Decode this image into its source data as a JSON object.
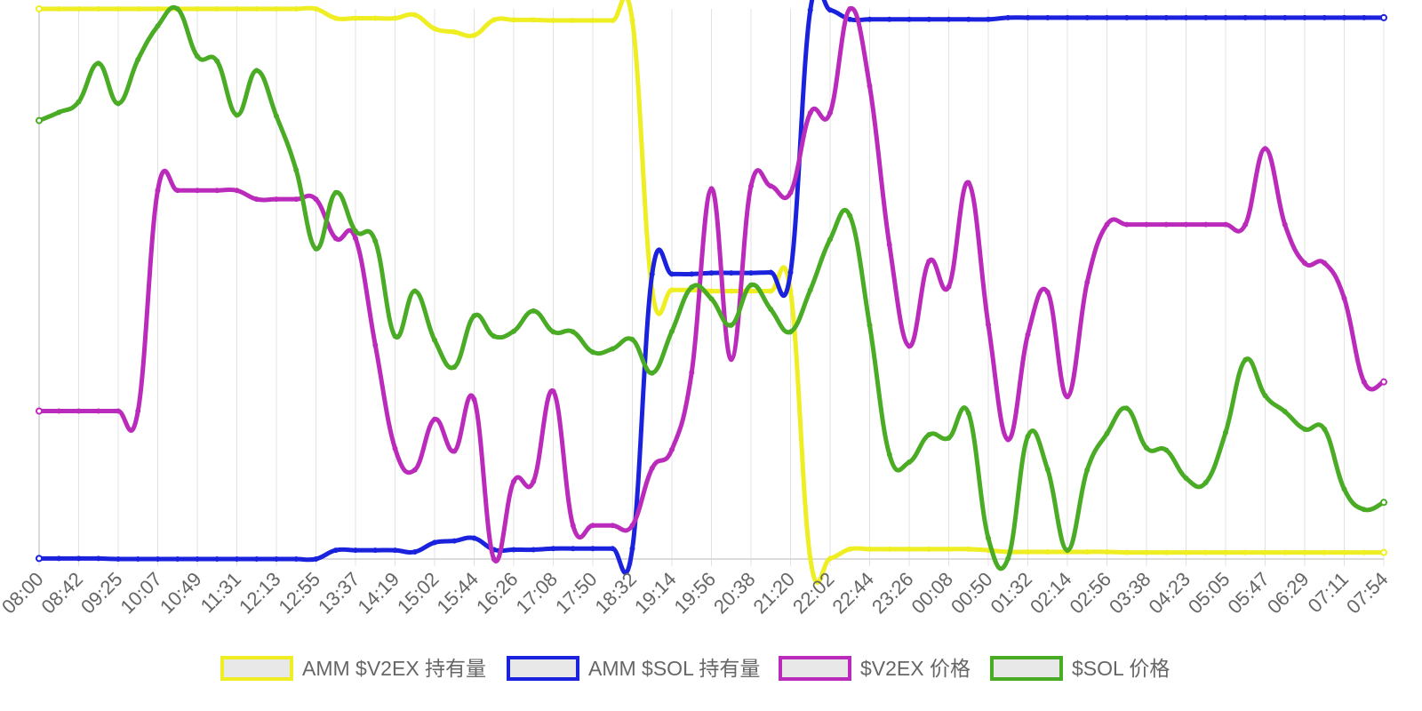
{
  "chart_data": {
    "type": "line",
    "x": [
      "08:00",
      "08:21",
      "08:42",
      "09:04",
      "09:25",
      "09:46",
      "10:07",
      "10:28",
      "10:49",
      "11:10",
      "11:31",
      "11:52",
      "12:13",
      "12:34",
      "12:55",
      "13:16",
      "13:37",
      "13:58",
      "14:19",
      "14:40",
      "15:02",
      "15:23",
      "15:44",
      "16:05",
      "16:26",
      "16:47",
      "17:08",
      "17:29",
      "17:50",
      "18:11",
      "18:32",
      "18:53",
      "19:14",
      "19:35",
      "19:56",
      "20:17",
      "20:38",
      "20:59",
      "21:20",
      "21:41",
      "22:02",
      "22:23",
      "22:44",
      "23:05",
      "23:26",
      "23:47",
      "00:08",
      "00:29",
      "00:50",
      "01:11",
      "01:32",
      "01:53",
      "02:14",
      "02:35",
      "02:56",
      "03:17",
      "03:38",
      "04:01",
      "04:23",
      "04:44",
      "05:05",
      "05:26",
      "05:47",
      "06:08",
      "06:29",
      "06:50",
      "07:11",
      "07:32",
      "07:54"
    ],
    "x_tick_labels": [
      "08:00",
      "08:42",
      "09:25",
      "10:07",
      "10:49",
      "11:31",
      "12:13",
      "12:55",
      "13:37",
      "14:19",
      "15:02",
      "15:44",
      "16:26",
      "17:08",
      "17:50",
      "18:32",
      "19:14",
      "19:56",
      "20:38",
      "21:20",
      "22:02",
      "22:44",
      "23:26",
      "00:08",
      "00:50",
      "01:32",
      "02:14",
      "02:56",
      "03:38",
      "04:23",
      "05:05",
      "05:47",
      "06:29",
      "07:11",
      "07:54"
    ],
    "ylim": [
      0,
      100
    ],
    "y_axis_labels_shown": false,
    "grid": "vertical",
    "legend_position": "bottom",
    "series": [
      {
        "name": "AMM $V2EX 持有量",
        "color": "#eeee22",
        "values": [
          100,
          100,
          100,
          100,
          100,
          100,
          100,
          100,
          100,
          100,
          100,
          100,
          100,
          100,
          100,
          98.3,
          98.3,
          98.3,
          98.3,
          98.9,
          96.4,
          95.8,
          95.2,
          98,
          98,
          98,
          97.9,
          97.9,
          97.9,
          97.9,
          97.9,
          48.9,
          48.9,
          48.9,
          48.7,
          48.7,
          48.7,
          48.7,
          48.7,
          0.1,
          0.1,
          1.8,
          1.8,
          1.8,
          1.8,
          1.8,
          1.8,
          1.8,
          1.6,
          1.3,
          1.3,
          1.3,
          1.3,
          1.3,
          1.3,
          1.2,
          1.2,
          1.2,
          1.2,
          1.2,
          1.2,
          1.2,
          1.2,
          1.2,
          1.2,
          1.2,
          1.2,
          1.2,
          1.2
        ]
      },
      {
        "name": "AMM $SOL 持有量",
        "color": "#1a22dd",
        "values": [
          0.1,
          0.1,
          0.1,
          0.1,
          0,
          0,
          0,
          0,
          0,
          0,
          0,
          0,
          0,
          0,
          0,
          1.6,
          1.6,
          1.6,
          1.6,
          1.3,
          3,
          3.3,
          3.8,
          1.7,
          1.7,
          1.7,
          1.9,
          1.9,
          1.9,
          1.9,
          1.9,
          51.8,
          51.8,
          51.8,
          52,
          52,
          52,
          52.1,
          52.1,
          99.8,
          99.8,
          98.1,
          98.1,
          98.1,
          98.1,
          98.1,
          98.1,
          98.1,
          98.1,
          98.4,
          98.4,
          98.4,
          98.4,
          98.4,
          98.4,
          98.4,
          98.4,
          98.4,
          98.4,
          98.4,
          98.4,
          98.4,
          98.4,
          98.4,
          98.4,
          98.4,
          98.4,
          98.4,
          98.4
        ]
      },
      {
        "name": "$V2EX 价格",
        "color": "#bb2bbb",
        "values": [
          26.9,
          26.9,
          26.9,
          26.9,
          26.9,
          26.9,
          67,
          67,
          67,
          67,
          67,
          65.4,
          65.4,
          65.4,
          65.4,
          58.3,
          58.3,
          38.9,
          20.1,
          16.2,
          25.4,
          19.6,
          29,
          0,
          14.1,
          14.1,
          30.5,
          6.1,
          6.1,
          6.1,
          6.1,
          16.5,
          19.9,
          33.9,
          67.3,
          36.3,
          67.8,
          67.8,
          66.6,
          81.1,
          81.1,
          100,
          86,
          57.1,
          38.7,
          54.1,
          49.5,
          68.4,
          42.6,
          21.7,
          40.8,
          48.5,
          29.5,
          50.3,
          60.8,
          60.8,
          60.8,
          60.8,
          60.8,
          60.8,
          60.8,
          60.8,
          74.6,
          60.8,
          53.8,
          53.8,
          47.4,
          32.2,
          32.2
        ]
      },
      {
        "name": "$SOL 价格",
        "color": "#4aab25",
        "values": [
          79.7,
          81.2,
          83.1,
          90.1,
          82.8,
          90.8,
          96.9,
          100,
          91.4,
          90.5,
          80.7,
          88.8,
          80.5,
          70.7,
          56.4,
          66.6,
          59.6,
          57.8,
          40.5,
          48.7,
          39.8,
          34.9,
          44.2,
          40.5,
          41.4,
          45.1,
          41.3,
          41.3,
          37.6,
          38.2,
          39.9,
          33.8,
          41.4,
          49.4,
          47.3,
          42.5,
          49.8,
          45.4,
          41.3,
          48.9,
          58.1,
          62.4,
          42.5,
          19,
          17.6,
          22.6,
          22,
          26.5,
          3.8,
          0.1,
          22.3,
          16.3,
          1.6,
          16.2,
          22.8,
          27.4,
          20.2,
          19.8,
          14.7,
          13.9,
          23,
          36.2,
          29.7,
          26.8,
          23.6,
          23.6,
          12.7,
          9,
          10.3
        ]
      }
    ]
  }
}
